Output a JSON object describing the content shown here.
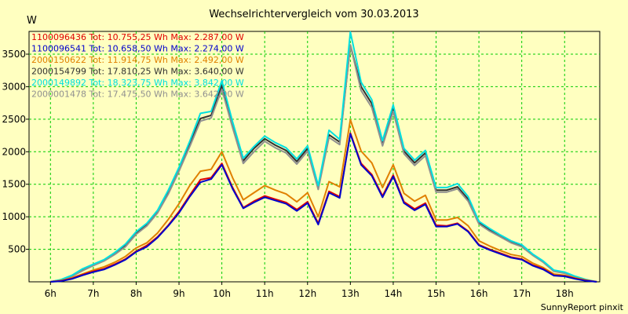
{
  "chart_data": {
    "type": "line",
    "title": "Wechselrichtervergleich vom 30.03.2013",
    "ylabel": "W",
    "xlabel": "",
    "footer": "SunnyReport pinxit",
    "ylim": [
      0,
      3850
    ],
    "xlim": [
      5.5,
      18.82
    ],
    "yticks": [
      500,
      1000,
      1500,
      2000,
      2500,
      3000,
      3500
    ],
    "xticks": [
      "6h",
      "7h",
      "8h",
      "9h",
      "10h",
      "11h",
      "12h",
      "13h",
      "14h",
      "15h",
      "16h",
      "17h",
      "18h"
    ],
    "x": [
      6.0,
      6.25,
      6.5,
      6.75,
      7.0,
      7.25,
      7.5,
      7.75,
      8.0,
      8.25,
      8.5,
      8.75,
      9.0,
      9.25,
      9.5,
      9.75,
      10.0,
      10.25,
      10.5,
      10.75,
      11.0,
      11.25,
      11.5,
      11.75,
      12.0,
      12.25,
      12.5,
      12.75,
      13.0,
      13.25,
      13.5,
      13.75,
      14.0,
      14.25,
      14.5,
      14.75,
      15.0,
      15.25,
      15.5,
      15.75,
      16.0,
      16.25,
      16.5,
      16.75,
      17.0,
      17.25,
      17.5,
      17.75,
      18.0,
      18.25,
      18.5,
      18.75
    ],
    "series": [
      {
        "name": "1100096436 Tot: 10.755,25 Wh Max: 2.287,00 W",
        "color": "#e00000",
        "values": [
          0,
          15,
          50,
          110,
          160,
          200,
          270,
          350,
          470,
          560,
          690,
          870,
          1080,
          1330,
          1570,
          1600,
          1820,
          1450,
          1140,
          1240,
          1320,
          1270,
          1220,
          1110,
          1230,
          900,
          1390,
          1310,
          2287,
          1820,
          1650,
          1320,
          1640,
          1230,
          1120,
          1210,
          870,
          860,
          900,
          780,
          570,
          500,
          440,
          380,
          350,
          260,
          200,
          100,
          90,
          50,
          20,
          0
        ]
      },
      {
        "name": "1100096541 Tot: 10.658,50 Wh Max: 2.274,00 W",
        "color": "#0000cc",
        "values": [
          0,
          10,
          45,
          100,
          150,
          190,
          260,
          340,
          460,
          540,
          680,
          860,
          1060,
          1310,
          1530,
          1580,
          1800,
          1430,
          1130,
          1220,
          1300,
          1250,
          1200,
          1090,
          1210,
          880,
          1370,
          1290,
          2274,
          1800,
          1630,
          1300,
          1620,
          1210,
          1100,
          1190,
          850,
          850,
          890,
          770,
          560,
          490,
          430,
          370,
          340,
          250,
          190,
          95,
          85,
          45,
          15,
          0
        ]
      },
      {
        "name": "2000150622 Tot: 11.914,75 Wh Max: 2.492,00 W",
        "color": "#e08000",
        "values": [
          0,
          20,
          60,
          120,
          180,
          230,
          300,
          390,
          520,
          600,
          750,
          960,
          1200,
          1480,
          1700,
          1730,
          2000,
          1600,
          1260,
          1370,
          1480,
          1410,
          1350,
          1230,
          1370,
          1000,
          1540,
          1460,
          2492,
          2010,
          1830,
          1450,
          1800,
          1360,
          1240,
          1330,
          950,
          950,
          990,
          860,
          630,
          550,
          480,
          420,
          390,
          290,
          220,
          120,
          100,
          60,
          25,
          0
        ]
      },
      {
        "name": "2000154799 Tot: 17.810,25 Wh Max: 3.640,00 W",
        "color": "#303030",
        "values": [
          0,
          30,
          90,
          180,
          260,
          330,
          430,
          560,
          750,
          880,
          1080,
          1380,
          1730,
          2120,
          2510,
          2560,
          3020,
          2420,
          1860,
          2050,
          2200,
          2100,
          2020,
          1850,
          2050,
          1450,
          2260,
          2150,
          3640,
          3000,
          2740,
          2130,
          2670,
          2010,
          1830,
          1980,
          1410,
          1410,
          1460,
          1270,
          910,
          800,
          700,
          610,
          550,
          420,
          310,
          170,
          140,
          80,
          30,
          0
        ]
      },
      {
        "name": "2000149892 Tot: 18.323,75 Wh Max: 3.842,00 W",
        "color": "#00e0e0",
        "values": [
          0,
          35,
          100,
          200,
          270,
          340,
          450,
          580,
          770,
          900,
          1100,
          1410,
          1760,
          2160,
          2590,
          2620,
          3090,
          2460,
          1900,
          2080,
          2240,
          2140,
          2060,
          1890,
          2090,
          1480,
          2330,
          2190,
          3842,
          3070,
          2800,
          2170,
          2720,
          2050,
          1870,
          2020,
          1450,
          1450,
          1510,
          1310,
          930,
          820,
          720,
          630,
          570,
          430,
          320,
          180,
          150,
          85,
          35,
          0
        ]
      },
      {
        "name": "2000001478 Tot: 17.475,50 Wh Max: 3.642,00 W",
        "color": "#909090",
        "values": [
          0,
          30,
          85,
          170,
          250,
          320,
          420,
          540,
          730,
          860,
          1060,
          1350,
          1700,
          2080,
          2470,
          2520,
          2960,
          2370,
          1820,
          2000,
          2160,
          2060,
          1980,
          1810,
          2010,
          1420,
          2220,
          2110,
          3642,
          2940,
          2680,
          2090,
          2620,
          1970,
          1790,
          1940,
          1380,
          1380,
          1430,
          1240,
          890,
          780,
          690,
          600,
          540,
          410,
          300,
          160,
          130,
          75,
          28,
          0
        ]
      }
    ],
    "legend_position": "top-left",
    "grid": true,
    "colors": {
      "background": "#ffffc0",
      "grid": "#00cc00"
    }
  }
}
